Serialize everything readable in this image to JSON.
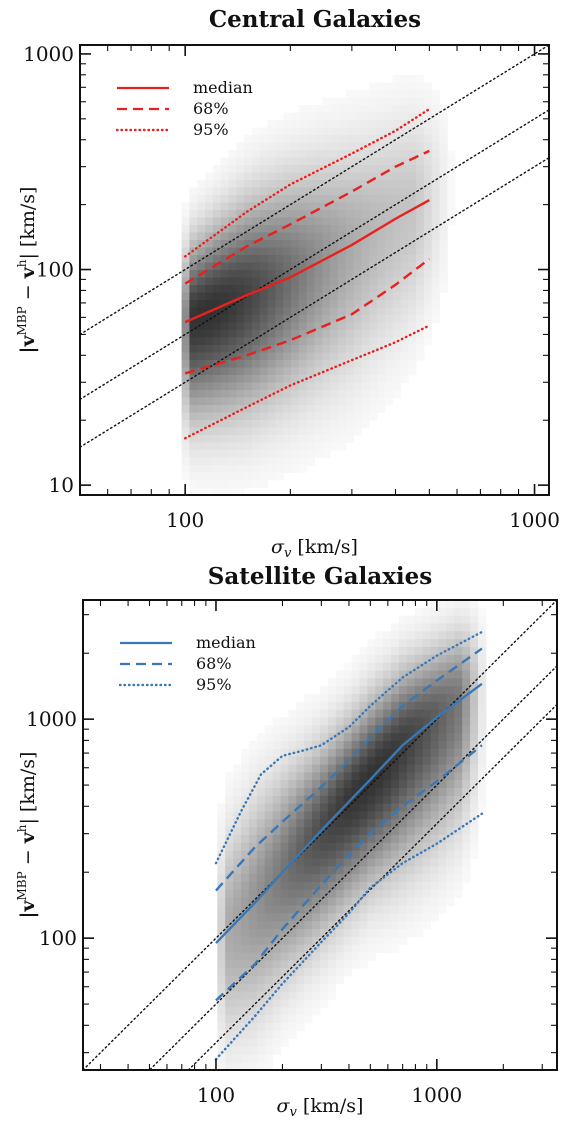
{
  "chart_data": [
    {
      "type": "line",
      "title": "Central Galaxies",
      "xlabel": "σv [km/s]",
      "ylabel": "|vMBP − vh| [km/s]",
      "xscale": "log",
      "yscale": "log",
      "xlim": [
        50,
        1100
      ],
      "ylim": [
        9,
        1100
      ],
      "xticks": [
        {
          "value": 100,
          "label": "100"
        },
        {
          "value": 1000,
          "label": "1000"
        }
      ],
      "yticks": [
        {
          "value": 10,
          "label": "10"
        },
        {
          "value": 100,
          "label": "100"
        },
        {
          "value": 1000,
          "label": "1000"
        }
      ],
      "legend_position": "top-left",
      "color": "#e8211e",
      "series": [
        {
          "name": "median",
          "style": "solid",
          "x": [
            100,
            150,
            200,
            300,
            400,
            500
          ],
          "y": [
            57,
            76,
            92,
            130,
            172,
            210
          ]
        },
        {
          "name": "68%",
          "style": "dashed",
          "x": [
            100,
            150,
            200,
            300,
            400,
            500
          ],
          "y": [
            86,
            128,
            162,
            230,
            300,
            355
          ]
        },
        {
          "name": "68%",
          "style": "dashed",
          "x": [
            100,
            150,
            200,
            300,
            400,
            500
          ],
          "y": [
            33,
            40,
            47,
            62,
            85,
            112
          ]
        },
        {
          "name": "95%",
          "style": "dotted",
          "x": [
            100,
            150,
            200,
            300,
            400,
            500
          ],
          "y": [
            115,
            185,
            248,
            345,
            440,
            555
          ]
        },
        {
          "name": "95%",
          "style": "dotted",
          "x": [
            100,
            150,
            200,
            300,
            400,
            500
          ],
          "y": [
            16.5,
            23,
            29,
            38,
            46,
            55
          ]
        }
      ],
      "reference_lines": [
        {
          "style": "dotted",
          "x": [
            50,
            1100
          ],
          "y": [
            50,
            1100
          ]
        },
        {
          "style": "dotted",
          "x": [
            50,
            1100
          ],
          "y": [
            25,
            550
          ]
        },
        {
          "style": "dotted",
          "x": [
            50,
            1100
          ],
          "y": [
            15,
            330
          ]
        }
      ],
      "density": {
        "x_range": [
          95,
          600
        ],
        "peak": [
          115,
          70
        ]
      }
    },
    {
      "type": "line",
      "title": "Satellite Galaxies",
      "xlabel": "σv [km/s]",
      "ylabel": "|vMBP − vh| [km/s]",
      "xscale": "log",
      "yscale": "log",
      "xlim": [
        25,
        3500
      ],
      "ylim": [
        25,
        3500
      ],
      "xticks": [
        {
          "value": 100,
          "label": "100"
        },
        {
          "value": 1000,
          "label": "1000"
        }
      ],
      "yticks": [
        {
          "value": 100,
          "label": "100"
        },
        {
          "value": 1000,
          "label": "1000"
        }
      ],
      "legend_position": "top-left",
      "color": "#3a78b5",
      "series": [
        {
          "name": "median",
          "style": "solid",
          "x": [
            100,
            150,
            200,
            300,
            400,
            500,
            700,
            1000,
            1600
          ],
          "y": [
            95,
            145,
            200,
            310,
            420,
            530,
            760,
            1020,
            1450
          ]
        },
        {
          "name": "68%",
          "style": "dashed",
          "x": [
            100,
            150,
            200,
            300,
            400,
            500,
            700,
            1000,
            1600
          ],
          "y": [
            165,
            260,
            340,
            490,
            650,
            820,
            1150,
            1500,
            2100
          ]
        },
        {
          "name": "68%",
          "style": "dashed",
          "x": [
            100,
            150,
            200,
            300,
            400,
            500,
            700,
            1000,
            1600
          ],
          "y": [
            52,
            76,
            110,
            175,
            240,
            300,
            400,
            520,
            760
          ]
        },
        {
          "name": "95%",
          "style": "dotted",
          "x": [
            100,
            130,
            160,
            200,
            250,
            300,
            400,
            500,
            700,
            1000,
            1600
          ],
          "y": [
            220,
            380,
            560,
            680,
            720,
            760,
            920,
            1150,
            1550,
            1950,
            2500
          ]
        },
        {
          "name": "95%",
          "style": "dotted",
          "x": [
            100,
            150,
            200,
            300,
            400,
            500,
            700,
            1000,
            1600
          ],
          "y": [
            28,
            44,
            62,
            96,
            130,
            170,
            220,
            270,
            370
          ]
        }
      ],
      "reference_lines": [
        {
          "style": "dotted",
          "x": [
            25,
            3500
          ],
          "y": [
            25,
            3500
          ]
        },
        {
          "style": "dotted",
          "x": [
            25,
            3500
          ],
          "y": [
            12.5,
            1750
          ]
        },
        {
          "style": "dotted",
          "x": [
            25,
            3500
          ],
          "y": [
            8.33,
            1167
          ]
        }
      ],
      "density": {
        "x_range": [
          100,
          1700
        ],
        "peak": [
          500,
          520
        ]
      }
    }
  ]
}
